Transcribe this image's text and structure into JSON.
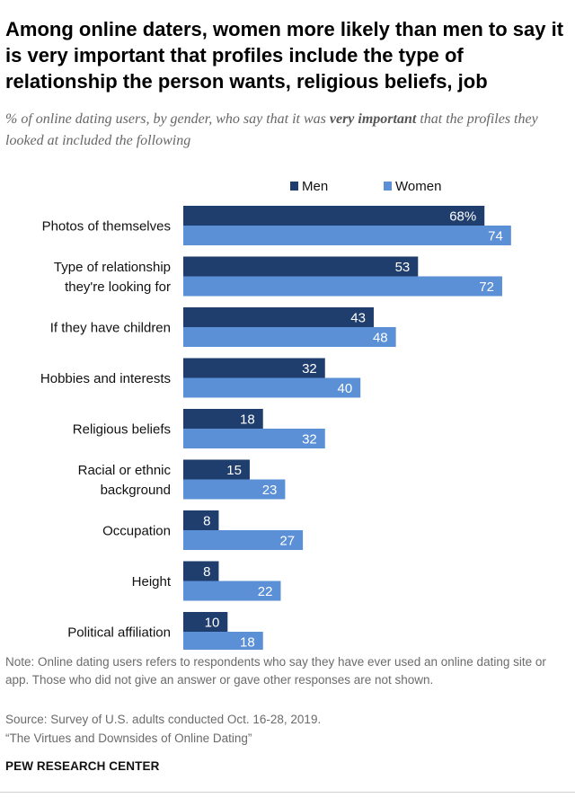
{
  "title": "Among online daters, women more likely than men to say it is very important that profiles include the type of relationship the person wants, religious beliefs, job",
  "subtitle": {
    "before": "% of online dating users, by gender, who say that it was ",
    "emphasis": "very important",
    "after": " that the profiles they looked at included the following"
  },
  "chart_data": {
    "type": "bar",
    "orientation": "horizontal",
    "categories": [
      "Photos of themselves",
      "Type of relationship\nthey're looking for",
      "If they have children",
      "Hobbies and interests",
      "Religious beliefs",
      "Racial or ethnic\nbackground",
      "Occupation",
      "Height",
      "Political affiliation"
    ],
    "series": [
      {
        "name": "Men",
        "color": "#1f3e6e",
        "values": [
          68,
          53,
          43,
          32,
          18,
          15,
          8,
          8,
          10
        ],
        "labels": [
          "68%",
          "53",
          "43",
          "32",
          "18",
          "15",
          "8",
          "8",
          "10"
        ]
      },
      {
        "name": "Women",
        "color": "#5b8fd6",
        "values": [
          74,
          72,
          48,
          40,
          32,
          23,
          27,
          22,
          18
        ],
        "labels": [
          "74",
          "72",
          "48",
          "40",
          "32",
          "23",
          "27",
          "22",
          "18"
        ]
      }
    ],
    "xlim": [
      0,
      100
    ],
    "legend_position": "top",
    "grid": false
  },
  "footer": {
    "note": "Note: Online dating users refers to respondents who say they have ever used an online dating site or app. Those who did not give an answer or gave other responses are not shown.",
    "source": "Source: Survey of U.S. adults conducted Oct. 16-28, 2019.",
    "report": "“The Virtues and Downsides of Online Dating”",
    "organization": "PEW RESEARCH CENTER"
  }
}
